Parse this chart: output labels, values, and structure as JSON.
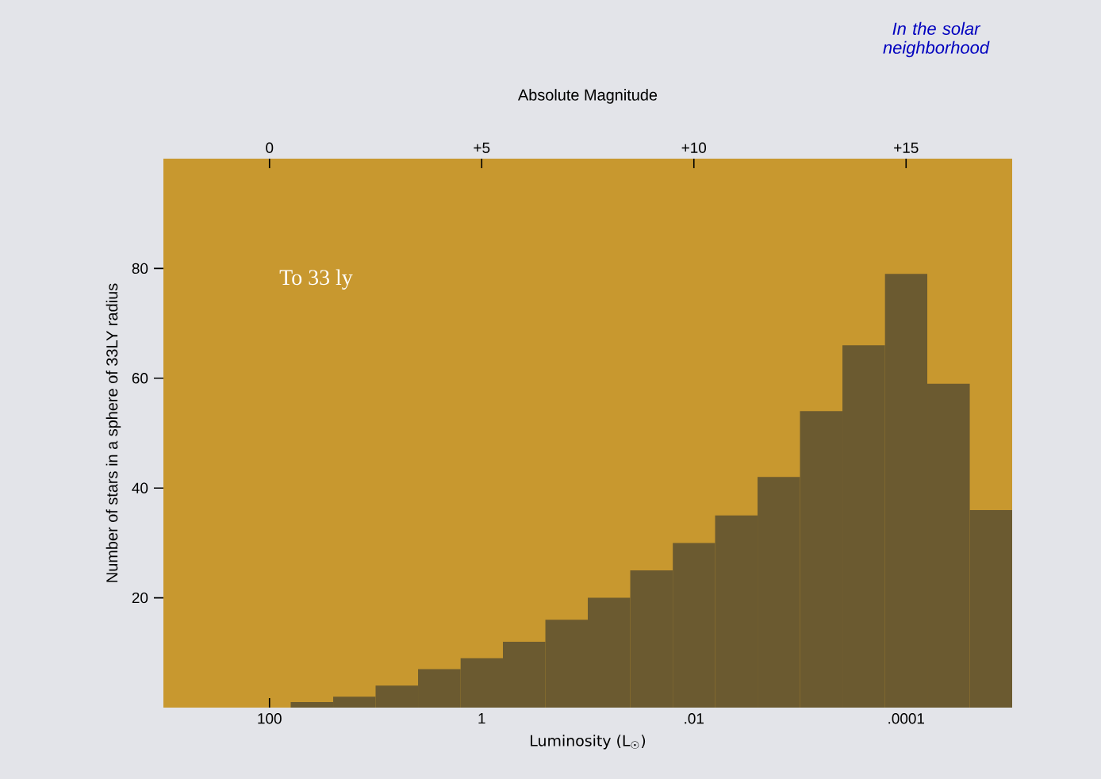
{
  "chart_data": {
    "type": "histogram",
    "xlabel": "Luminosity (L$_{☉}$)",
    "x2label": "Absolute Magnitude",
    "ylabel": "Number of stars in a sphere of 33LY radius",
    "annotations": [
      "To 33 ly",
      "In the solar neighborhood"
    ],
    "bins": [
      63.1,
      25.1,
      10,
      3.98,
      1.58,
      0.631,
      0.251,
      0.1,
      0.0398,
      0.0158,
      0.00631,
      0.00251,
      0.001,
      0.000398,
      0.000158,
      6.31e-05,
      2.51e-05,
      1e-05
    ],
    "values": [
      1,
      2,
      4,
      7,
      9,
      12,
      16,
      20,
      25,
      30,
      35,
      42,
      54,
      66,
      79,
      59,
      36
    ],
    "color": "#6b5a30",
    "log": "x",
    "xlim": [
      1000,
      1e-05
    ],
    "xticks": [
      100,
      1,
      {
        "value": 0.01,
        "label": ".01"
      },
      {
        "value": 0.0001,
        "label": ".0001"
      }
    ],
    "x2lim": [
      -2.5,
      17.5
    ],
    "x2ticks": [
      0,
      {
        "value": 5,
        "label": "+5"
      },
      {
        "value": 10,
        "label": "+10"
      },
      {
        "value": 15,
        "label": "+15"
      }
    ],
    "ylim": [
      0,
      100
    ],
    "yticks": [
      20,
      40,
      60,
      80
    ],
    "grid": false
  }
}
